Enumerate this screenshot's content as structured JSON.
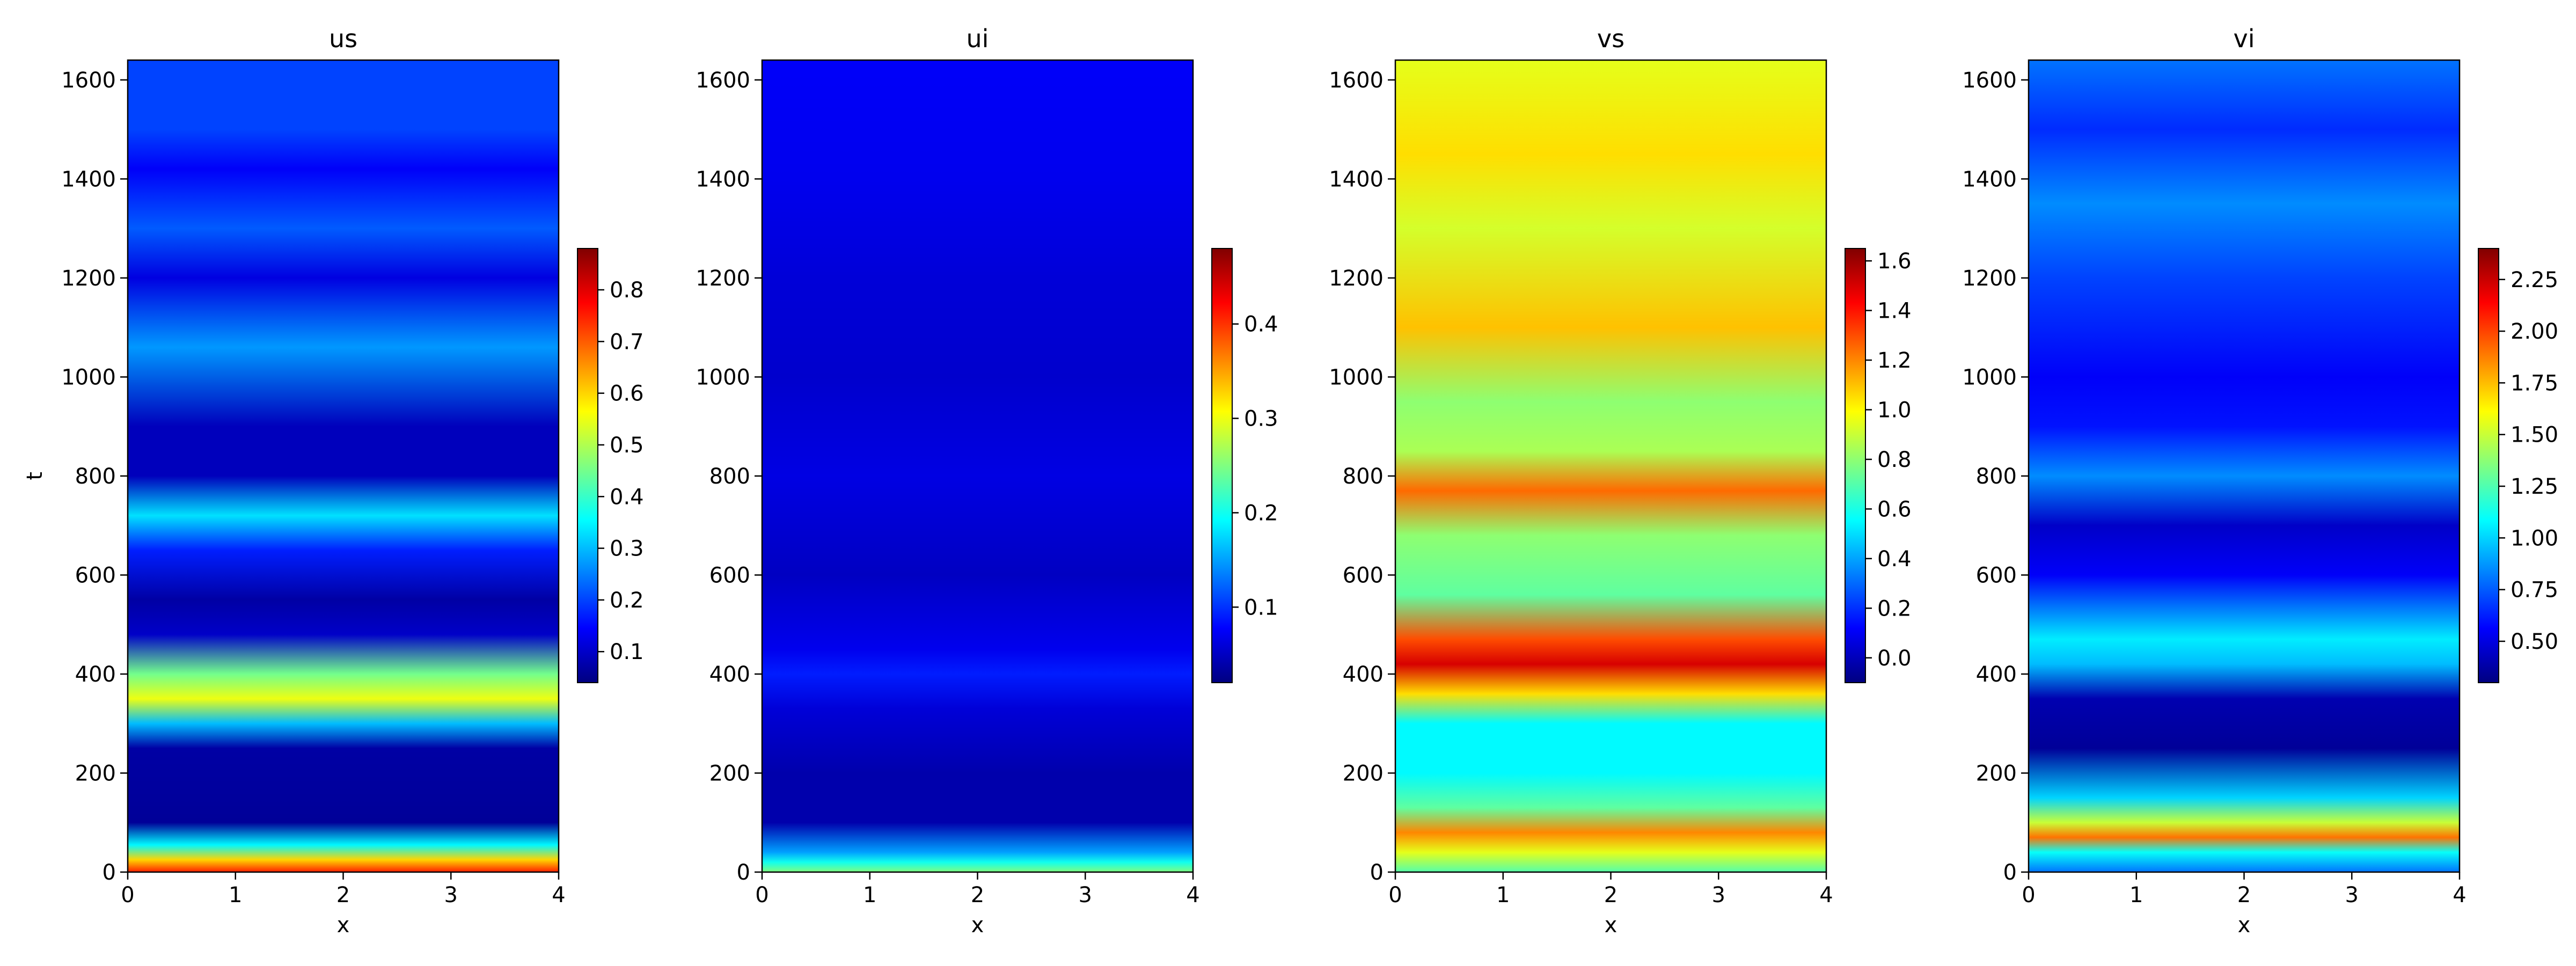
{
  "chart_data": [
    {
      "type": "heatmap",
      "title": "us",
      "xlabel": "x",
      "ylabel": "t",
      "xlim": [
        0,
        4
      ],
      "ylim": [
        0,
        1640
      ],
      "x_ticks": [
        "0",
        "1",
        "2",
        "3",
        "4"
      ],
      "y_ticks": [
        "0",
        "200",
        "400",
        "600",
        "800",
        "1000",
        "1200",
        "1400",
        "1600"
      ],
      "colorbar": {
        "range": [
          0.04,
          0.88
        ],
        "ticks": [
          "0.1",
          "0.2",
          "0.3",
          "0.4",
          "0.5",
          "0.6",
          "0.7",
          "0.8"
        ],
        "tick_values": [
          0.1,
          0.2,
          0.3,
          0.4,
          0.5,
          0.6,
          0.7,
          0.8
        ]
      },
      "bands": [
        {
          "t": 1640,
          "value": 0.2
        },
        {
          "t": 1500,
          "value": 0.2
        },
        {
          "t": 1420,
          "value": 0.14
        },
        {
          "t": 1300,
          "value": 0.22
        },
        {
          "t": 1200,
          "value": 0.12
        },
        {
          "t": 1060,
          "value": 0.27
        },
        {
          "t": 900,
          "value": 0.09
        },
        {
          "t": 800,
          "value": 0.09
        },
        {
          "t": 720,
          "value": 0.33
        },
        {
          "t": 650,
          "value": 0.17
        },
        {
          "t": 550,
          "value": 0.07
        },
        {
          "t": 480,
          "value": 0.1
        },
        {
          "t": 400,
          "value": 0.45
        },
        {
          "t": 350,
          "value": 0.55
        },
        {
          "t": 300,
          "value": 0.3
        },
        {
          "t": 250,
          "value": 0.07
        },
        {
          "t": 100,
          "value": 0.06
        },
        {
          "t": 55,
          "value": 0.35
        },
        {
          "t": 25,
          "value": 0.6
        },
        {
          "t": 0,
          "value": 0.75
        }
      ]
    },
    {
      "type": "heatmap",
      "title": "ui",
      "xlabel": "x",
      "ylabel": "",
      "xlim": [
        0,
        4
      ],
      "ylim": [
        0,
        1640
      ],
      "x_ticks": [
        "0",
        "1",
        "2",
        "3",
        "4"
      ],
      "y_ticks": [
        "0",
        "200",
        "400",
        "600",
        "800",
        "1000",
        "1200",
        "1400",
        "1600"
      ],
      "colorbar": {
        "range": [
          0.02,
          0.48
        ],
        "ticks": [
          "0.1",
          "0.2",
          "0.3",
          "0.4"
        ],
        "tick_values": [
          0.1,
          0.2,
          0.3,
          0.4
        ]
      },
      "bands": [
        {
          "t": 1640,
          "value": 0.075
        },
        {
          "t": 1400,
          "value": 0.07
        },
        {
          "t": 1200,
          "value": 0.06
        },
        {
          "t": 1000,
          "value": 0.055
        },
        {
          "t": 800,
          "value": 0.065
        },
        {
          "t": 600,
          "value": 0.05
        },
        {
          "t": 450,
          "value": 0.07
        },
        {
          "t": 400,
          "value": 0.09
        },
        {
          "t": 330,
          "value": 0.06
        },
        {
          "t": 200,
          "value": 0.04
        },
        {
          "t": 100,
          "value": 0.04
        },
        {
          "t": 40,
          "value": 0.15
        },
        {
          "t": 20,
          "value": 0.2
        },
        {
          "t": 0,
          "value": 0.25
        }
      ]
    },
    {
      "type": "heatmap",
      "title": "vs",
      "xlabel": "x",
      "ylabel": "",
      "xlim": [
        0,
        4
      ],
      "ylim": [
        0,
        1640
      ],
      "x_ticks": [
        "0",
        "1",
        "2",
        "3",
        "4"
      ],
      "y_ticks": [
        "0",
        "200",
        "400",
        "600",
        "800",
        "1000",
        "1200",
        "1400",
        "1600"
      ],
      "colorbar": {
        "range": [
          -0.1,
          1.65
        ],
        "ticks": [
          "0.0",
          "0.2",
          "0.4",
          "0.6",
          "0.8",
          "1.0",
          "1.2",
          "1.4",
          "1.6"
        ],
        "tick_values": [
          0.0,
          0.2,
          0.4,
          0.6,
          0.8,
          1.0,
          1.2,
          1.4,
          1.6
        ]
      },
      "bands": [
        {
          "t": 1640,
          "value": 0.95
        },
        {
          "t": 1450,
          "value": 1.05
        },
        {
          "t": 1300,
          "value": 0.92
        },
        {
          "t": 1100,
          "value": 1.1
        },
        {
          "t": 950,
          "value": 0.8
        },
        {
          "t": 850,
          "value": 0.85
        },
        {
          "t": 770,
          "value": 1.25
        },
        {
          "t": 680,
          "value": 0.8
        },
        {
          "t": 560,
          "value": 0.72
        },
        {
          "t": 470,
          "value": 1.3
        },
        {
          "t": 420,
          "value": 1.5
        },
        {
          "t": 360,
          "value": 1.05
        },
        {
          "t": 300,
          "value": 0.55
        },
        {
          "t": 200,
          "value": 0.55
        },
        {
          "t": 130,
          "value": 0.72
        },
        {
          "t": 80,
          "value": 1.2
        },
        {
          "t": 40,
          "value": 0.95
        },
        {
          "t": 0,
          "value": 0.7
        }
      ]
    },
    {
      "type": "heatmap",
      "title": "vi",
      "xlabel": "x",
      "ylabel": "",
      "xlim": [
        0,
        4
      ],
      "ylim": [
        0,
        1640
      ],
      "x_ticks": [
        "0",
        "1",
        "2",
        "3",
        "4"
      ],
      "y_ticks": [
        "0",
        "200",
        "400",
        "600",
        "800",
        "1000",
        "1200",
        "1400",
        "1600"
      ],
      "colorbar": {
        "range": [
          0.3,
          2.4
        ],
        "ticks": [
          "0.50",
          "0.75",
          "1.00",
          "1.25",
          "1.50",
          "1.75",
          "2.00",
          "2.25"
        ],
        "tick_values": [
          0.5,
          0.75,
          1.0,
          1.25,
          1.5,
          1.75,
          2.0,
          2.25
        ]
      },
      "bands": [
        {
          "t": 1640,
          "value": 0.8
        },
        {
          "t": 1500,
          "value": 0.65
        },
        {
          "t": 1350,
          "value": 0.85
        },
        {
          "t": 1200,
          "value": 0.7
        },
        {
          "t": 1000,
          "value": 0.55
        },
        {
          "t": 900,
          "value": 0.6
        },
        {
          "t": 800,
          "value": 0.85
        },
        {
          "t": 700,
          "value": 0.45
        },
        {
          "t": 600,
          "value": 0.55
        },
        {
          "t": 470,
          "value": 1.05
        },
        {
          "t": 420,
          "value": 0.95
        },
        {
          "t": 350,
          "value": 0.4
        },
        {
          "t": 250,
          "value": 0.35
        },
        {
          "t": 150,
          "value": 1.0
        },
        {
          "t": 100,
          "value": 1.5
        },
        {
          "t": 70,
          "value": 1.9
        },
        {
          "t": 40,
          "value": 1.1
        },
        {
          "t": 0,
          "value": 0.8
        }
      ]
    }
  ]
}
